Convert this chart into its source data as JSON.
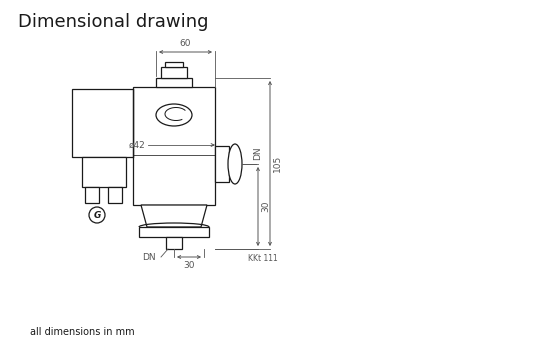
{
  "title": "Dimensional drawing",
  "subtitle": "all dimensions in mm",
  "part_number": "KKt 111",
  "dim_60": "60",
  "dim_42": "ø42",
  "dim_105": "105",
  "dim_30_right": "30",
  "dim_30_bottom": "30",
  "dim_DN_right": "DN",
  "dim_DN_bottom": "DN",
  "bg_color": "#ffffff",
  "line_color": "#1a1a1a",
  "dim_color": "#555555",
  "title_fontsize": 13,
  "subtitle_fontsize": 7,
  "dim_fontsize": 6.5
}
